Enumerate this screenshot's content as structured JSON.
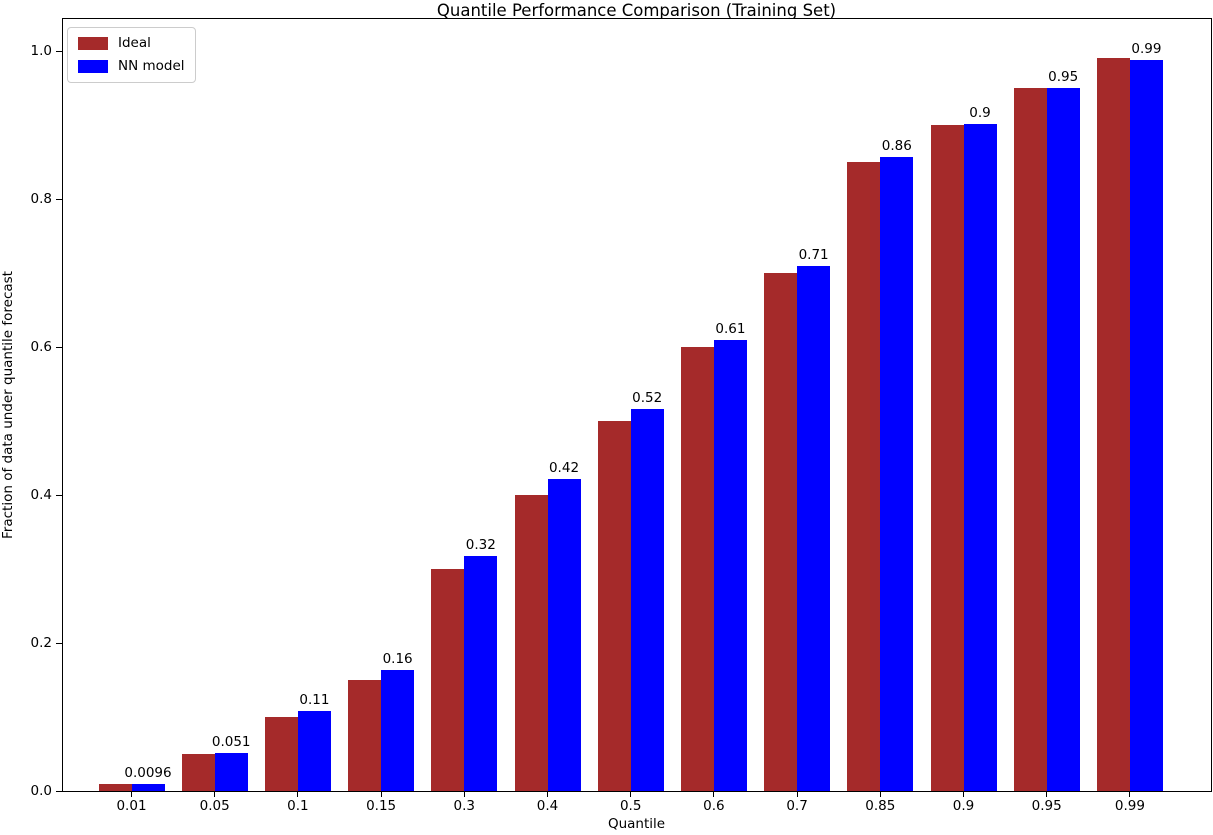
{
  "chart_data": {
    "type": "bar",
    "title": "Quantile Performance Comparison (Training Set)",
    "xlabel": "Quantile",
    "ylabel": "Fraction of data under quantile forecast",
    "categories": [
      "0.01",
      "0.05",
      "0.1",
      "0.15",
      "0.3",
      "0.4",
      "0.5",
      "0.6",
      "0.7",
      "0.85",
      "0.9",
      "0.95",
      "0.99"
    ],
    "series": [
      {
        "name": "Ideal",
        "color": "#A52A2A",
        "values": [
          0.01,
          0.05,
          0.1,
          0.15,
          0.3,
          0.4,
          0.5,
          0.6,
          0.7,
          0.85,
          0.9,
          0.95,
          0.99
        ]
      },
      {
        "name": "NN model",
        "color": "#0000FF",
        "values": [
          0.0096,
          0.051,
          0.108,
          0.163,
          0.318,
          0.421,
          0.516,
          0.61,
          0.709,
          0.857,
          0.902,
          0.95,
          0.988
        ],
        "bar_labels": [
          "0.0096",
          "0.051",
          "0.11",
          "0.16",
          "0.32",
          "0.42",
          "0.52",
          "0.61",
          "0.71",
          "0.86",
          "0.9",
          "0.95",
          "0.99"
        ]
      }
    ],
    "yticks": [
      "0.0",
      "0.2",
      "0.4",
      "0.6",
      "0.8",
      "1.0"
    ],
    "ylim": [
      0,
      1.045
    ],
    "legend": {
      "position": "upper left",
      "entries": [
        "Ideal",
        "NN model"
      ]
    },
    "grid": false,
    "background_color": "#ffffff",
    "axis_color": "#000000"
  }
}
